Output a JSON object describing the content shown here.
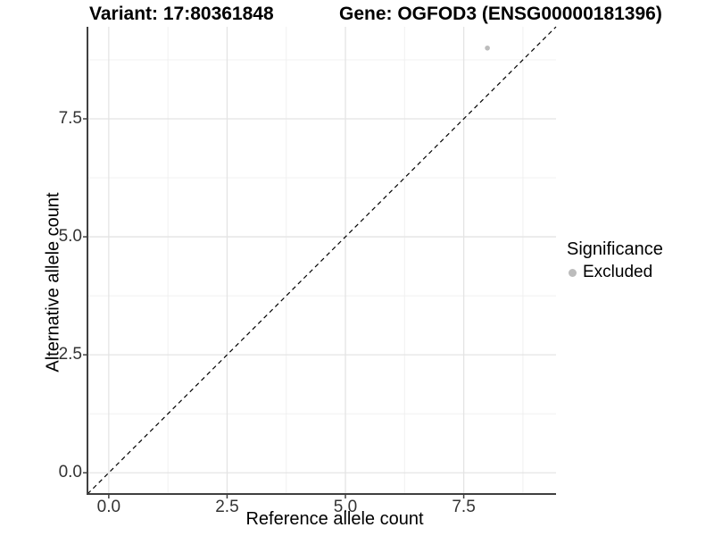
{
  "titles": {
    "variant": "Variant: 17:80361848",
    "gene": "Gene: OGFOD3 (ENSG00000181396)"
  },
  "chart_data": {
    "type": "scatter",
    "title": "Variant: 17:80361848   Gene: OGFOD3 (ENSG00000181396)",
    "xlabel": "Reference allele count",
    "ylabel": "Alternative allele count",
    "xlim": [
      -0.45,
      9.45
    ],
    "ylim": [
      -0.45,
      9.45
    ],
    "grid": true,
    "x_ticks": [
      {
        "value": 0,
        "label": "0.0"
      },
      {
        "value": 2.5,
        "label": "2.5"
      },
      {
        "value": 5,
        "label": "5.0"
      },
      {
        "value": 7.5,
        "label": "7.5"
      }
    ],
    "y_ticks": [
      {
        "value": 0,
        "label": "0.0"
      },
      {
        "value": 2.5,
        "label": "2.5"
      },
      {
        "value": 5,
        "label": "5.0"
      },
      {
        "value": 7.5,
        "label": "7.5"
      }
    ],
    "x_minor_ticks": [
      1.25,
      3.75,
      6.25,
      8.75
    ],
    "y_minor_ticks": [
      1.25,
      3.75,
      6.25,
      8.75
    ],
    "series": [
      {
        "name": "Excluded",
        "color": "#bcbcbc",
        "points": [
          {
            "x": 8,
            "y": 9
          }
        ]
      }
    ],
    "reference_line": {
      "style": "dashed",
      "color": "#000000",
      "slope": 1,
      "intercept": 0
    },
    "legend": {
      "title": "Significance",
      "position": "right",
      "items": [
        {
          "label": "Excluded",
          "color": "#bcbcbc",
          "marker": "point"
        }
      ]
    }
  },
  "colors": {
    "background": "#ffffff",
    "point": "#bcbcbc",
    "grid_major": "#e4e4e4",
    "grid_minor": "#f0f0f0",
    "axis_line": "#404040",
    "tick_text": "#333333",
    "title_text": "#000000"
  }
}
